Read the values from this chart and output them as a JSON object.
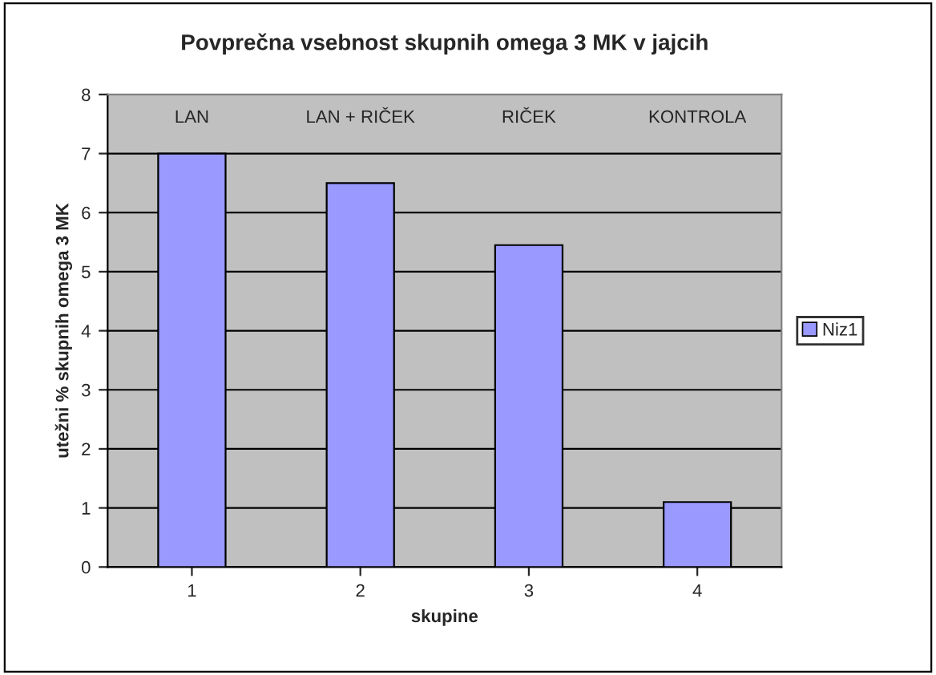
{
  "chart_data": {
    "type": "bar",
    "title": "Povprečna vsebnost skupnih omega 3 MK v jajcih",
    "xlabel": "skupine",
    "ylabel": "utežni % skupnih omega 3 MK",
    "categories": [
      "1",
      "2",
      "3",
      "4"
    ],
    "series": [
      {
        "name": "Niz1",
        "color": "#9999ff",
        "values": [
          7.0,
          6.5,
          5.45,
          1.1
        ]
      }
    ],
    "ylim": [
      0,
      8
    ],
    "yticks": [
      0,
      1,
      2,
      3,
      4,
      5,
      6,
      7,
      8
    ],
    "grid": "y",
    "legend": "right",
    "annotations": [
      "LAN",
      "LAN + RIČEK",
      "RIČEK",
      "KONTROLA"
    ]
  }
}
